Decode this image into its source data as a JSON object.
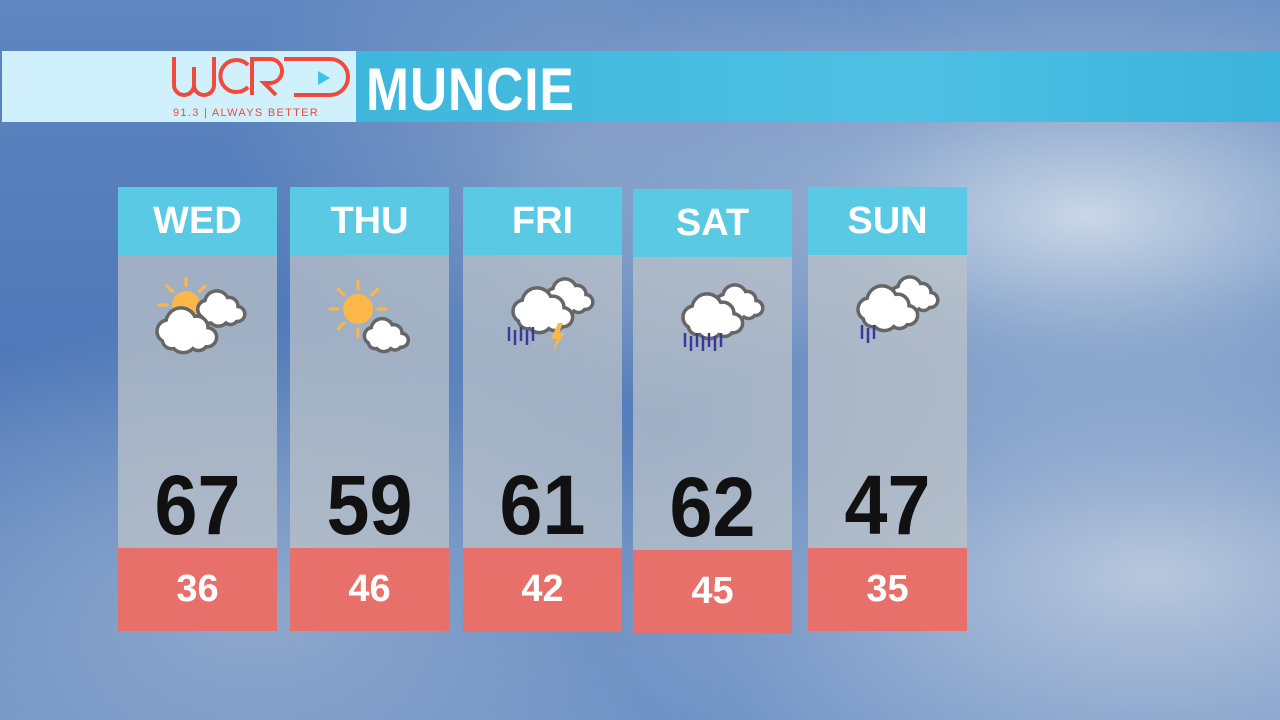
{
  "logo": {
    "text": "WCRD",
    "tagline": "91.3 | ALWAYS BETTER",
    "color": "#f04a3c",
    "play_color": "#3cc4e8"
  },
  "header": {
    "title": "MUNCIE"
  },
  "colors": {
    "day_header": "#59c9e4",
    "low_bar": "#e8706a",
    "title_bar": "#3fb6dc"
  },
  "forecast": [
    {
      "day": "WED",
      "icon": "partly-cloudy-icon",
      "high": "67",
      "low": "36"
    },
    {
      "day": "THU",
      "icon": "mostly-sunny-icon",
      "high": "59",
      "low": "46"
    },
    {
      "day": "FRI",
      "icon": "thunderstorm-icon",
      "high": "61",
      "low": "42"
    },
    {
      "day": "SAT",
      "icon": "rain-icon",
      "high": "62",
      "low": "45"
    },
    {
      "day": "SUN",
      "icon": "light-rain-icon",
      "high": "47",
      "low": "35"
    }
  ]
}
